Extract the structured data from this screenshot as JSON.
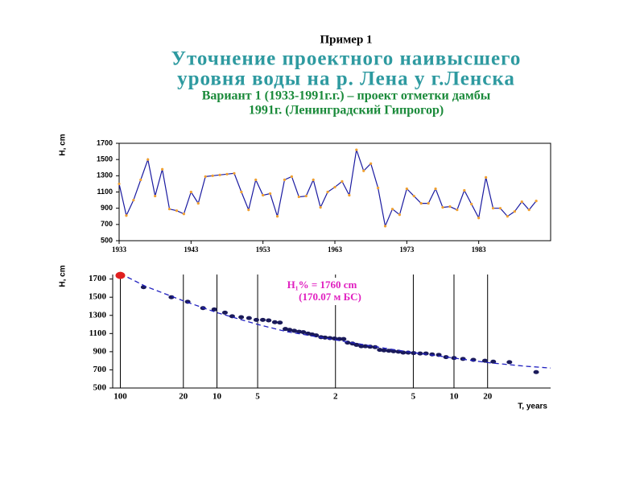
{
  "slide": {
    "title": "Пример 1",
    "heading": [
      "Уточнение проектного наивысшего",
      "уровня воды на р. Лена у г.Ленска"
    ],
    "subtitle": [
      "Вариант 1 (1933-1991г.г.) – проект отметки дамбы",
      "1991г. (Ленинградский Гипрогор)"
    ]
  },
  "chart_data": [
    {
      "type": "line",
      "ylabel": "H, cm",
      "x": [
        1933,
        1934,
        1935,
        1936,
        1937,
        1938,
        1939,
        1940,
        1941,
        1942,
        1943,
        1944,
        1945,
        1946,
        1947,
        1948,
        1949,
        1950,
        1951,
        1952,
        1953,
        1954,
        1955,
        1956,
        1957,
        1958,
        1959,
        1960,
        1961,
        1962,
        1963,
        1964,
        1965,
        1966,
        1967,
        1968,
        1969,
        1970,
        1971,
        1972,
        1973,
        1974,
        1975,
        1976,
        1977,
        1978,
        1979,
        1980,
        1981,
        1982,
        1983,
        1984,
        1985,
        1986,
        1987,
        1988,
        1989,
        1990,
        1991
      ],
      "series": [
        {
          "color": "#1a1aa0",
          "marker_color": "#f0a030",
          "values": [
            1200,
            810,
            1000,
            1250,
            1500,
            1050,
            1380,
            890,
            870,
            830,
            1100,
            960,
            1290,
            1300,
            1310,
            1320,
            1330,
            1100,
            880,
            1250,
            1060,
            1080,
            800,
            1250,
            1290,
            1040,
            1050,
            1250,
            910,
            1100,
            1160,
            1230,
            1060,
            1620,
            1360,
            1450,
            1150,
            680,
            890,
            820,
            1140,
            1050,
            960,
            960,
            1140,
            910,
            920,
            880,
            1120,
            950,
            780,
            1280,
            900,
            900,
            800,
            860,
            980,
            880,
            990
          ]
        }
      ],
      "xlim": [
        1933,
        1993
      ],
      "xticks": [
        1933,
        1943,
        1953,
        1963,
        1973,
        1983
      ],
      "ylim": [
        500,
        1700
      ],
      "yticks": [
        500,
        700,
        900,
        1100,
        1300,
        1500,
        1700
      ],
      "grid": false
    },
    {
      "type": "probability",
      "ylabel": "H, cm",
      "xlabel": "T, years",
      "xscale": "probability",
      "annotation": [
        "H₁% = 1760 cm",
        "(170.07 м БС)"
      ],
      "annotation_color": "#e020c0",
      "series": [
        {
          "style": "markers",
          "color": "#1a1a5a",
          "x": [
            1.9,
            3.8,
            5.5,
            7.6,
            9.5,
            11.6,
            13.2,
            15.4,
            17.5,
            19.6,
            21.6,
            23.5,
            25.6,
            27.4,
            29.4,
            31.0,
            32.8,
            34.7,
            36.4,
            38.3,
            40.0,
            41.7,
            43.8,
            45.5,
            47.6,
            49.6,
            51.7,
            53.5,
            55.2,
            57.3,
            59.0,
            61.0,
            62.7,
            64.6,
            66.6,
            68.4,
            70.0,
            71.8,
            73.5,
            75.2,
            76.8,
            78.4,
            80.1,
            82.0,
            83.6,
            85.2,
            86.8,
            88.4,
            90.0,
            91.6,
            93.2,
            94.7,
            95.6,
            97.0,
            98.5
          ],
          "values": [
            1610,
            1500,
            1450,
            1380,
            1365,
            1330,
            1290,
            1280,
            1270,
            1250,
            1250,
            1245,
            1225,
            1220,
            1150,
            1140,
            1130,
            1120,
            1115,
            1100,
            1090,
            1080,
            1060,
            1055,
            1050,
            1045,
            1040,
            1040,
            1000,
            990,
            975,
            960,
            960,
            955,
            950,
            920,
            915,
            910,
            905,
            900,
            890,
            890,
            885,
            880,
            880,
            870,
            865,
            840,
            830,
            820,
            810,
            800,
            790,
            785,
            675
          ]
        },
        {
          "style": "dashed",
          "color": "#2020c0",
          "x": [
            1,
            2,
            5,
            10,
            20,
            30,
            50,
            70,
            80,
            90,
            95,
            98,
            99
          ],
          "values": [
            1760,
            1620,
            1460,
            1330,
            1200,
            1120,
            1030,
            940,
            890,
            830,
            780,
            740,
            720
          ]
        },
        {
          "style": "highlight",
          "color": "#e02020",
          "x": [
            1
          ],
          "values": [
            1740
          ]
        }
      ],
      "xlim": [
        0.8,
        99
      ],
      "xticks": [
        {
          "value": 1,
          "label": "100"
        },
        {
          "value": 5,
          "label": "20"
        },
        10,
        {
          "value": 20,
          "label": "5"
        },
        {
          "value": 50,
          "label": "2"
        },
        {
          "value": 80,
          "label": "5"
        },
        {
          "value": 90,
          "label": "10"
        },
        {
          "value": 95,
          "label": "20"
        }
      ],
      "ylim": [
        500,
        1750
      ],
      "yticks": [
        500,
        700,
        900,
        1100,
        1300,
        1500,
        1700
      ],
      "grid": "x"
    }
  ]
}
